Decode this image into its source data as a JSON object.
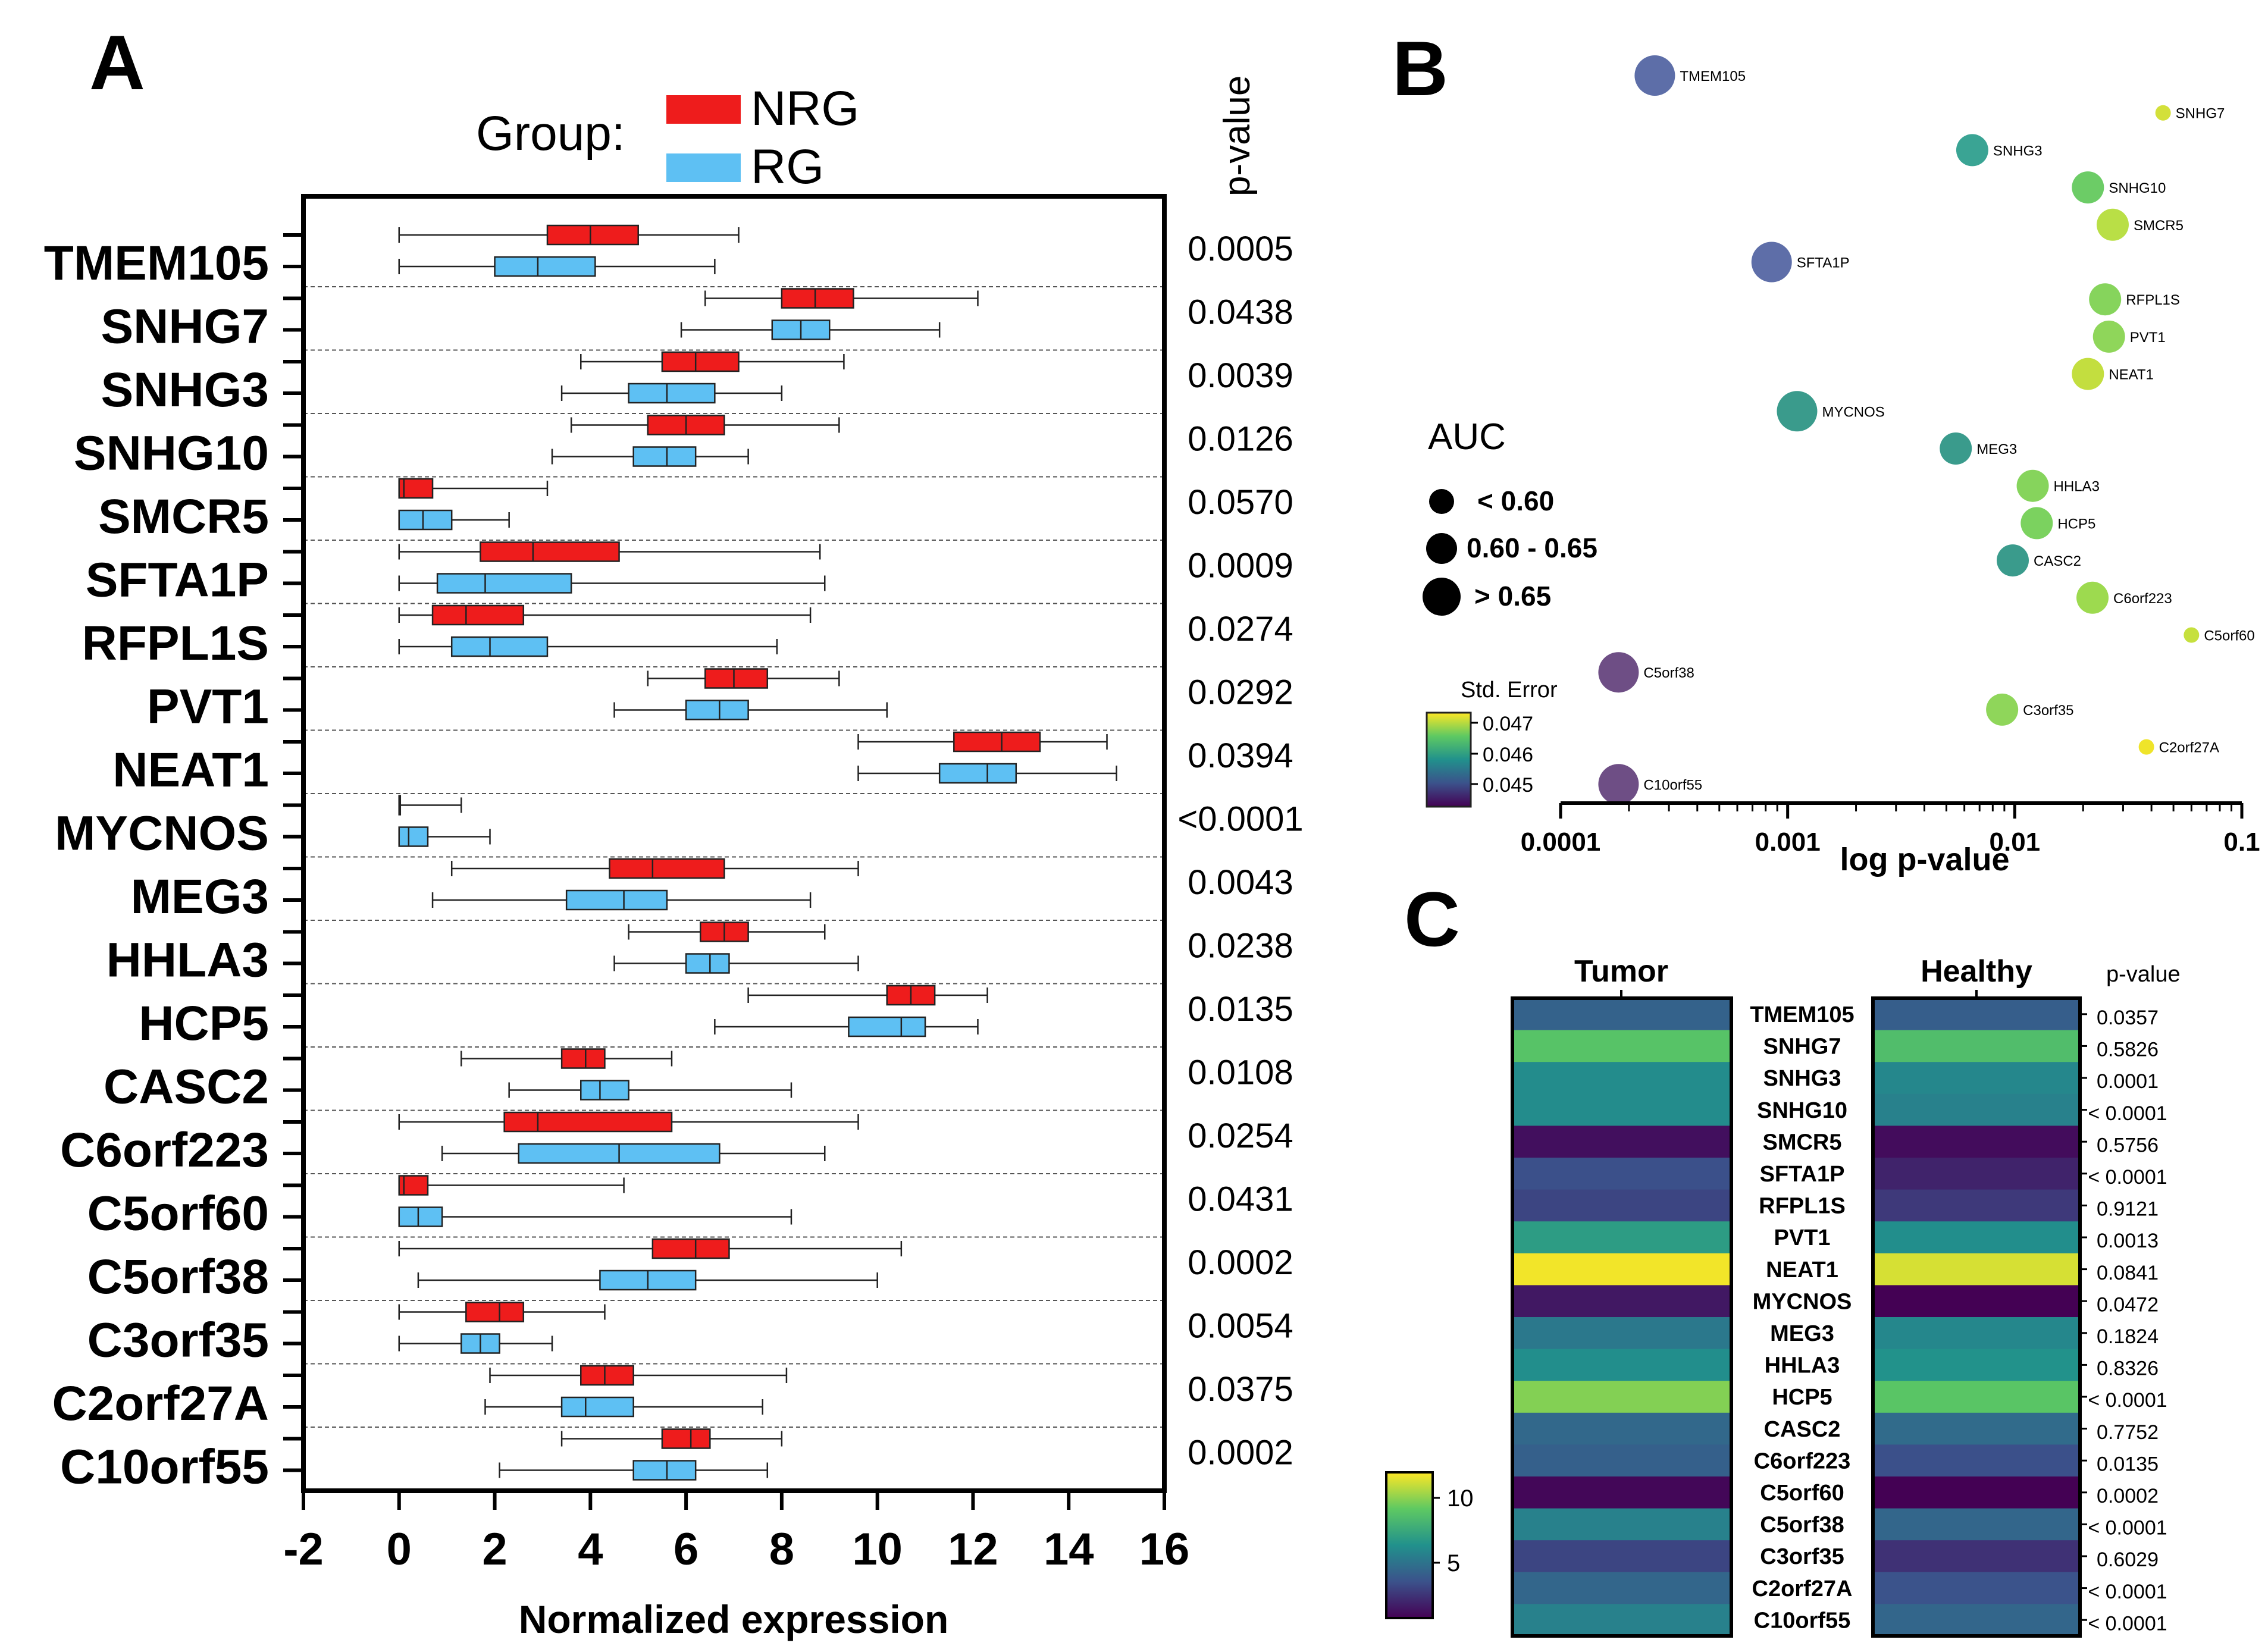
{
  "panels": {
    "a": "A",
    "b": "B",
    "c": "C"
  },
  "chart_data": [
    {
      "type": "boxplot",
      "panel": "A",
      "orientation": "horizontal",
      "legend_title": "Group:",
      "legend": [
        {
          "name": "NRG",
          "color": "#ee1c1c"
        },
        {
          "name": "RG",
          "color": "#5ec0f3"
        }
      ],
      "xlabel": "Normalized expression",
      "xlim": [
        -2,
        16
      ],
      "xticks": [
        "-2",
        "0",
        "2",
        "4",
        "6",
        "8",
        "10",
        "12",
        "14",
        "16"
      ],
      "pvalue_header": "p-value",
      "genes": [
        {
          "name": "TMEM105",
          "p": "0.0005",
          "NRG": {
            "min": 0,
            "q1": 3.1,
            "median": 4.0,
            "q3": 5.0,
            "max": 7.1
          },
          "RG": {
            "min": 0,
            "q1": 2.0,
            "median": 2.9,
            "q3": 4.1,
            "max": 6.6
          }
        },
        {
          "name": "SNHG7",
          "p": "0.0438",
          "NRG": {
            "min": 6.4,
            "q1": 8.0,
            "median": 8.7,
            "q3": 9.5,
            "max": 12.1
          },
          "RG": {
            "min": 5.9,
            "q1": 7.8,
            "median": 8.4,
            "q3": 9.0,
            "max": 11.3
          }
        },
        {
          "name": "SNHG3",
          "p": "0.0039",
          "NRG": {
            "min": 3.8,
            "q1": 5.5,
            "median": 6.2,
            "q3": 7.1,
            "max": 9.3
          },
          "RG": {
            "min": 3.4,
            "q1": 4.8,
            "median": 5.6,
            "q3": 6.6,
            "max": 8.0
          }
        },
        {
          "name": "SNHG10",
          "p": "0.0126",
          "NRG": {
            "min": 3.6,
            "q1": 5.2,
            "median": 6.0,
            "q3": 6.8,
            "max": 9.2
          },
          "RG": {
            "min": 3.2,
            "q1": 4.9,
            "median": 5.6,
            "q3": 6.2,
            "max": 7.3
          }
        },
        {
          "name": "SMCR5",
          "p": "0.0570",
          "NRG": {
            "min": 0,
            "q1": 0,
            "median": 0.1,
            "q3": 0.7,
            "max": 3.1
          },
          "RG": {
            "min": 0,
            "q1": 0,
            "median": 0.5,
            "q3": 1.1,
            "max": 2.3
          }
        },
        {
          "name": "SFTA1P",
          "p": "0.0009",
          "NRG": {
            "min": 0,
            "q1": 1.7,
            "median": 2.8,
            "q3": 4.6,
            "max": 8.8
          },
          "RG": {
            "min": 0,
            "q1": 0.8,
            "median": 1.8,
            "q3": 3.6,
            "max": 8.9
          }
        },
        {
          "name": "RFPL1S",
          "p": "0.0274",
          "NRG": {
            "min": 0,
            "q1": 0.7,
            "median": 1.4,
            "q3": 2.6,
            "max": 8.6
          },
          "RG": {
            "min": 0,
            "q1": 1.1,
            "median": 1.9,
            "q3": 3.1,
            "max": 7.9
          }
        },
        {
          "name": "PVT1",
          "p": "0.0292",
          "NRG": {
            "min": 5.2,
            "q1": 6.4,
            "median": 7.0,
            "q3": 7.7,
            "max": 9.2
          },
          "RG": {
            "min": 4.5,
            "q1": 6.0,
            "median": 6.7,
            "q3": 7.3,
            "max": 10.2
          }
        },
        {
          "name": "NEAT1",
          "p": "0.0394",
          "NRG": {
            "min": 9.6,
            "q1": 11.6,
            "median": 12.6,
            "q3": 13.4,
            "max": 14.8
          },
          "RG": {
            "min": 9.6,
            "q1": 11.3,
            "median": 12.3,
            "q3": 12.9,
            "max": 15.0
          }
        },
        {
          "name": "MYCNOS",
          "p": "<0.0001",
          "NRG": {
            "min": 0,
            "q1": 0,
            "median": 0,
            "q3": 0,
            "max": 1.3
          },
          "RG": {
            "min": 0,
            "q1": 0,
            "median": 0.2,
            "q3": 0.6,
            "max": 1.9
          }
        },
        {
          "name": "MEG3",
          "p": "0.0043",
          "NRG": {
            "min": 1.1,
            "q1": 4.4,
            "median": 5.3,
            "q3": 6.8,
            "max": 9.6
          },
          "RG": {
            "min": 0.7,
            "q1": 3.5,
            "median": 4.7,
            "q3": 5.6,
            "max": 8.6
          }
        },
        {
          "name": "HHLA3",
          "p": "0.0238",
          "NRG": {
            "min": 4.8,
            "q1": 6.3,
            "median": 6.8,
            "q3": 7.3,
            "max": 8.9
          },
          "RG": {
            "min": 4.5,
            "q1": 6.0,
            "median": 6.5,
            "q3": 6.9,
            "max": 9.6
          }
        },
        {
          "name": "HCP5",
          "p": "0.0135",
          "NRG": {
            "min": 7.3,
            "q1": 10.2,
            "median": 10.7,
            "q3": 11.2,
            "max": 12.3
          },
          "RG": {
            "min": 6.6,
            "q1": 9.4,
            "median": 10.5,
            "q3": 11.0,
            "max": 12.1
          }
        },
        {
          "name": "CASC2",
          "p": "0.0108",
          "NRG": {
            "min": 1.3,
            "q1": 3.4,
            "median": 3.9,
            "q3": 4.3,
            "max": 5.7
          },
          "RG": {
            "min": 2.3,
            "q1": 3.8,
            "median": 4.2,
            "q3": 4.8,
            "max": 8.2
          }
        },
        {
          "name": "C6orf223",
          "p": "0.0254",
          "NRG": {
            "min": 0,
            "q1": 2.2,
            "median": 2.9,
            "q3": 5.7,
            "max": 9.6
          },
          "RG": {
            "min": 0.9,
            "q1": 2.5,
            "median": 4.6,
            "q3": 6.7,
            "max": 8.9
          }
        },
        {
          "name": "C5orf60",
          "p": "0.0431",
          "NRG": {
            "min": 0,
            "q1": 0,
            "median": 0.1,
            "q3": 0.6,
            "max": 4.7
          },
          "RG": {
            "min": 0,
            "q1": 0,
            "median": 0.4,
            "q3": 0.9,
            "max": 8.2
          }
        },
        {
          "name": "C5orf38",
          "p": "0.0002",
          "NRG": {
            "min": 0,
            "q1": 5.3,
            "median": 6.2,
            "q3": 6.9,
            "max": 10.5
          },
          "RG": {
            "min": 0.4,
            "q1": 4.2,
            "median": 5.2,
            "q3": 6.2,
            "max": 10.0
          }
        },
        {
          "name": "C3orf35",
          "p": "0.0054",
          "NRG": {
            "min": 0,
            "q1": 1.4,
            "median": 2.1,
            "q3": 2.6,
            "max": 4.3
          },
          "RG": {
            "min": 0,
            "q1": 1.3,
            "median": 1.7,
            "q3": 2.1,
            "max": 3.2
          }
        },
        {
          "name": "C2orf27A",
          "p": "0.0375",
          "NRG": {
            "min": 1.9,
            "q1": 3.8,
            "median": 4.3,
            "q3": 4.9,
            "max": 8.1
          },
          "RG": {
            "min": 1.8,
            "q1": 3.4,
            "median": 3.9,
            "q3": 4.9,
            "max": 7.6
          }
        },
        {
          "name": "C10orf55",
          "p": "0.0002",
          "NRG": {
            "min": 3.4,
            "q1": 5.5,
            "median": 6.1,
            "q3": 6.5,
            "max": 8.0
          },
          "RG": {
            "min": 2.1,
            "q1": 4.9,
            "median": 5.6,
            "q3": 6.2,
            "max": 7.7
          }
        }
      ]
    },
    {
      "type": "scatter",
      "panel": "B",
      "xlabel": "log p-value",
      "xscale": "log",
      "xlim": [
        0.0001,
        0.1
      ],
      "xticks": [
        "0.0001",
        "0.001",
        "0.01",
        "0.1"
      ],
      "size_legend_title": "AUC",
      "size_legend": [
        {
          "label": "< 0.60",
          "level": 1
        },
        {
          "label": "0.60 - 0.65",
          "level": 2
        },
        {
          "label": "> 0.65",
          "level": 3
        }
      ],
      "color_legend_title": "Std. Error",
      "color_legend_ticks": [
        "0.047",
        "0.046",
        "0.045"
      ],
      "points": [
        {
          "name": "TMEM105",
          "p": 0.00026,
          "auc_level": 3,
          "color": "#5d6ea8"
        },
        {
          "name": "SNHG7",
          "p": 0.045,
          "auc_level": 1,
          "color": "#d3e03a"
        },
        {
          "name": "SNHG3",
          "p": 0.0065,
          "auc_level": 2,
          "color": "#3aa494"
        },
        {
          "name": "SNHG10",
          "p": 0.021,
          "auc_level": 2,
          "color": "#6ccc66"
        },
        {
          "name": "SMCR5",
          "p": 0.027,
          "auc_level": 2,
          "color": "#b9df46"
        },
        {
          "name": "SFTA1P",
          "p": 0.00085,
          "auc_level": 3,
          "color": "#5e6ea8"
        },
        {
          "name": "RFPL1S",
          "p": 0.025,
          "auc_level": 2,
          "color": "#86d45c"
        },
        {
          "name": "PVT1",
          "p": 0.026,
          "auc_level": 2,
          "color": "#8fd65a"
        },
        {
          "name": "NEAT1",
          "p": 0.021,
          "auc_level": 2,
          "color": "#c3de3f"
        },
        {
          "name": "MYCNOS",
          "p": 0.0011,
          "auc_level": 3,
          "color": "#3a9b8c"
        },
        {
          "name": "MEG3",
          "p": 0.0055,
          "auc_level": 2,
          "color": "#3a9b8c"
        },
        {
          "name": "HHLA3",
          "p": 0.012,
          "auc_level": 2,
          "color": "#86d45c"
        },
        {
          "name": "HCP5",
          "p": 0.0125,
          "auc_level": 2,
          "color": "#7bd25f"
        },
        {
          "name": "CASC2",
          "p": 0.0098,
          "auc_level": 2,
          "color": "#3a9b8c"
        },
        {
          "name": "C6orf223",
          "p": 0.022,
          "auc_level": 2,
          "color": "#9dda4f"
        },
        {
          "name": "C5orf60",
          "p": 0.06,
          "auc_level": 1,
          "color": "#c6e03e"
        },
        {
          "name": "C5orf38",
          "p": 0.00018,
          "auc_level": 3,
          "color": "#6e4e85"
        },
        {
          "name": "C3orf35",
          "p": 0.0088,
          "auc_level": 2,
          "color": "#8fd65a"
        },
        {
          "name": "C2orf27A",
          "p": 0.038,
          "auc_level": 1,
          "color": "#efe42a"
        },
        {
          "name": "C10orf55",
          "p": 0.00018,
          "auc_level": 3,
          "color": "#6e4e85"
        }
      ]
    },
    {
      "type": "heatmap",
      "panel": "C",
      "columns": [
        "Tumor",
        "Healthy"
      ],
      "pvalue_header": "p-value",
      "colorbar_ticks": [
        "10",
        "5"
      ],
      "rows": [
        {
          "name": "TMEM105",
          "tumor": 4.6,
          "healthy": 4.4,
          "p": "0.0357"
        },
        {
          "name": "SNHG7",
          "tumor": 9.3,
          "healthy": 9.0,
          "p": "0.5826"
        },
        {
          "name": "SNHG3",
          "tumor": 6.5,
          "healthy": 6.3,
          "p": "0.0001"
        },
        {
          "name": "SNHG10",
          "tumor": 6.5,
          "healthy": 6.0,
          "p": "< 0.0001"
        },
        {
          "name": "SMCR5",
          "tumor": 1.5,
          "healthy": 1.4,
          "p": "0.5756"
        },
        {
          "name": "SFTA1P",
          "tumor": 3.8,
          "healthy": 2.2,
          "p": "< 0.0001"
        },
        {
          "name": "RFPL1S",
          "tumor": 3.4,
          "healthy": 3.0,
          "p": "0.9121"
        },
        {
          "name": "PVT1",
          "tumor": 7.3,
          "healthy": 6.6,
          "p": "0.0013"
        },
        {
          "name": "NEAT1",
          "tumor": 12.3,
          "healthy": 11.8,
          "p": "0.0841"
        },
        {
          "name": "MYCNOS",
          "tumor": 1.8,
          "healthy": 0.9,
          "p": "0.0472"
        },
        {
          "name": "MEG3",
          "tumor": 5.6,
          "healthy": 6.3,
          "p": "0.1824"
        },
        {
          "name": "HHLA3",
          "tumor": 6.6,
          "healthy": 6.8,
          "p": "0.8326"
        },
        {
          "name": "HCP5",
          "tumor": 10.3,
          "healthy": 9.4,
          "p": "< 0.0001"
        },
        {
          "name": "CASC2",
          "tumor": 4.9,
          "healthy": 5.0,
          "p": "0.7752"
        },
        {
          "name": "C6orf223",
          "tumor": 4.5,
          "healthy": 3.8,
          "p": "0.0135"
        },
        {
          "name": "C5orf60",
          "tumor": 1.2,
          "healthy": 0.6,
          "p": "0.0002"
        },
        {
          "name": "C5orf38",
          "tumor": 6.0,
          "healthy": 4.8,
          "p": "< 0.0001"
        },
        {
          "name": "C3orf35",
          "tumor": 3.4,
          "healthy": 2.7,
          "p": "0.6029"
        },
        {
          "name": "C2orf27A",
          "tumor": 4.8,
          "healthy": 3.9,
          "p": "< 0.0001"
        },
        {
          "name": "C10orf55",
          "tumor": 6.0,
          "healthy": 4.8,
          "p": "< 0.0001"
        }
      ]
    }
  ]
}
